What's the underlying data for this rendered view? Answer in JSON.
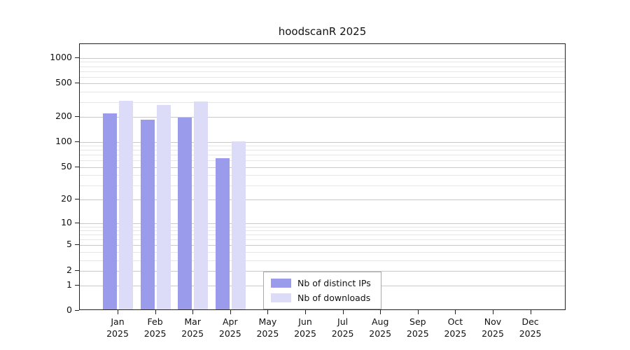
{
  "chart_data": {
    "type": "bar",
    "title": "hoodscanR 2025",
    "year": "2025",
    "categories": [
      "Jan",
      "Feb",
      "Mar",
      "Apr",
      "May",
      "Jun",
      "Jul",
      "Aug",
      "Sep",
      "Oct",
      "Nov",
      "Dec"
    ],
    "series": [
      {
        "name": "Nb of distinct IPs",
        "color": "#9b9bec",
        "values": [
          210,
          178,
          187,
          62,
          0,
          0,
          0,
          0,
          0,
          0,
          0,
          0
        ]
      },
      {
        "name": "Nb of downloads",
        "color": "#dcdcf8",
        "values": [
          300,
          265,
          295,
          97,
          0,
          0,
          0,
          0,
          0,
          0,
          0,
          0
        ]
      }
    ],
    "yticks": [
      0,
      1,
      2,
      5,
      10,
      20,
      50,
      100,
      200,
      500,
      1000
    ],
    "minor_gridlines": [
      3,
      4,
      6,
      7,
      8,
      9,
      30,
      40,
      60,
      70,
      80,
      90,
      300,
      400,
      600,
      700,
      800,
      900
    ],
    "scale": "log1p",
    "ylim": [
      0,
      1000
    ],
    "grid": "horizontal",
    "legend_position": "bottom-center-inside"
  }
}
